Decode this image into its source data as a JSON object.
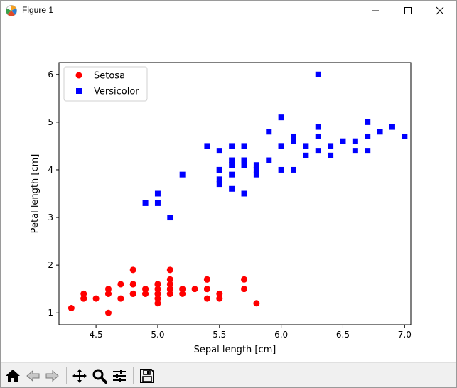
{
  "window": {
    "title": "Figure 1",
    "icon": "matplotlib-icon"
  },
  "toolbar": {
    "buttons": [
      "home-icon",
      "back-icon",
      "forward-icon",
      "pan-icon",
      "zoom-icon",
      "configure-subplots-icon",
      "save-icon"
    ]
  },
  "chart_data": {
    "type": "scatter",
    "title": "",
    "xlabel": "Sepal length [cm]",
    "ylabel": "Petal length [cm]",
    "xlim": [
      4.2,
      7.05
    ],
    "ylim": [
      0.75,
      6.25
    ],
    "xticks": [
      "4.5",
      "5.0",
      "5.5",
      "6.0",
      "6.5",
      "7.0"
    ],
    "yticks": [
      "1",
      "2",
      "3",
      "4",
      "5",
      "6"
    ],
    "grid": false,
    "legend_position": "upper-left",
    "series": [
      {
        "name": "Setosa",
        "color": "#ff0000",
        "marker": "circle",
        "points": [
          [
            5.1,
            1.4
          ],
          [
            4.9,
            1.4
          ],
          [
            4.7,
            1.3
          ],
          [
            4.6,
            1.5
          ],
          [
            5.0,
            1.4
          ],
          [
            5.4,
            1.7
          ],
          [
            4.6,
            1.4
          ],
          [
            5.0,
            1.5
          ],
          [
            4.4,
            1.4
          ],
          [
            4.9,
            1.5
          ],
          [
            5.4,
            1.5
          ],
          [
            4.8,
            1.6
          ],
          [
            4.8,
            1.4
          ],
          [
            4.3,
            1.1
          ],
          [
            5.8,
            1.2
          ],
          [
            5.7,
            1.5
          ],
          [
            5.4,
            1.3
          ],
          [
            5.1,
            1.4
          ],
          [
            5.7,
            1.7
          ],
          [
            5.1,
            1.5
          ],
          [
            5.4,
            1.7
          ],
          [
            5.1,
            1.5
          ],
          [
            4.6,
            1.0
          ],
          [
            5.1,
            1.7
          ],
          [
            4.8,
            1.9
          ],
          [
            5.0,
            1.6
          ],
          [
            5.0,
            1.6
          ],
          [
            5.2,
            1.5
          ],
          [
            5.2,
            1.4
          ],
          [
            4.7,
            1.6
          ],
          [
            4.8,
            1.6
          ],
          [
            5.4,
            1.5
          ],
          [
            5.2,
            1.5
          ],
          [
            5.5,
            1.4
          ],
          [
            4.9,
            1.5
          ],
          [
            5.0,
            1.2
          ],
          [
            5.5,
            1.3
          ],
          [
            4.9,
            1.4
          ],
          [
            4.4,
            1.3
          ],
          [
            5.1,
            1.5
          ],
          [
            5.0,
            1.3
          ],
          [
            4.5,
            1.3
          ],
          [
            4.4,
            1.3
          ],
          [
            5.0,
            1.6
          ],
          [
            5.1,
            1.9
          ],
          [
            4.8,
            1.4
          ],
          [
            5.1,
            1.6
          ],
          [
            4.6,
            1.4
          ],
          [
            5.3,
            1.5
          ],
          [
            5.0,
            1.4
          ]
        ]
      },
      {
        "name": "Versicolor",
        "color": "#0000ff",
        "marker": "square",
        "points": [
          [
            7.0,
            4.7
          ],
          [
            6.4,
            4.5
          ],
          [
            6.9,
            4.9
          ],
          [
            5.5,
            4.0
          ],
          [
            6.5,
            4.6
          ],
          [
            5.7,
            4.5
          ],
          [
            6.3,
            4.7
          ],
          [
            4.9,
            3.3
          ],
          [
            6.6,
            4.6
          ],
          [
            5.2,
            3.9
          ],
          [
            5.0,
            3.5
          ],
          [
            5.9,
            4.2
          ],
          [
            6.0,
            4.0
          ],
          [
            6.1,
            4.7
          ],
          [
            5.6,
            3.6
          ],
          [
            6.7,
            4.4
          ],
          [
            5.6,
            4.5
          ],
          [
            5.8,
            4.1
          ],
          [
            6.2,
            4.5
          ],
          [
            5.6,
            3.9
          ],
          [
            5.9,
            4.8
          ],
          [
            6.1,
            4.0
          ],
          [
            6.3,
            4.9
          ],
          [
            6.1,
            4.7
          ],
          [
            6.4,
            4.3
          ],
          [
            6.6,
            4.4
          ],
          [
            6.8,
            4.8
          ],
          [
            6.7,
            5.0
          ],
          [
            6.0,
            4.5
          ],
          [
            5.7,
            3.5
          ],
          [
            5.5,
            3.8
          ],
          [
            5.5,
            3.7
          ],
          [
            5.8,
            3.9
          ],
          [
            6.0,
            5.1
          ],
          [
            5.4,
            4.5
          ],
          [
            6.0,
            4.5
          ],
          [
            6.7,
            4.7
          ],
          [
            6.3,
            4.4
          ],
          [
            5.6,
            4.1
          ],
          [
            5.5,
            4.0
          ],
          [
            5.5,
            4.4
          ],
          [
            6.1,
            4.6
          ],
          [
            5.8,
            4.0
          ],
          [
            5.0,
            3.3
          ],
          [
            5.6,
            4.2
          ],
          [
            5.7,
            4.2
          ],
          [
            5.7,
            4.2
          ],
          [
            6.2,
            4.3
          ],
          [
            5.1,
            3.0
          ],
          [
            5.7,
            4.1
          ],
          [
            6.3,
            6.0
          ]
        ]
      }
    ]
  }
}
